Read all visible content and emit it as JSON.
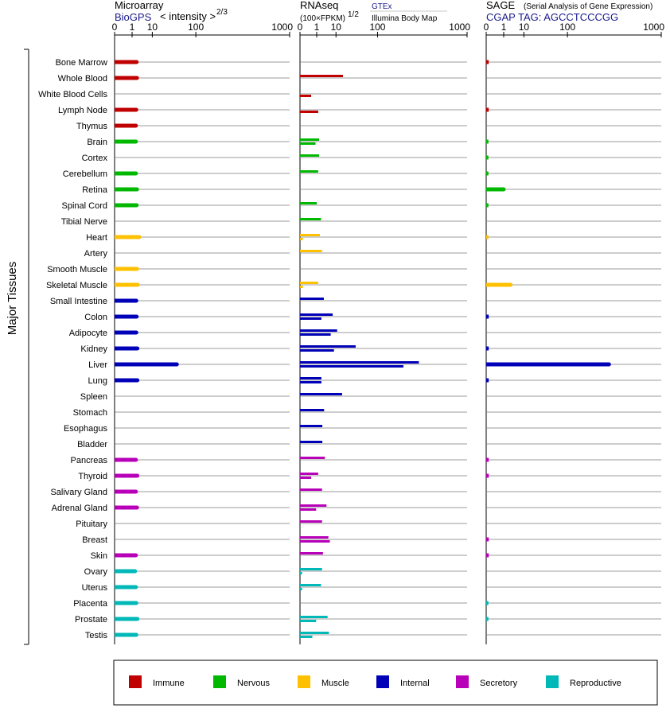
{
  "colors": {
    "immune": "#c00000",
    "nervous": "#00b800",
    "muscle": "#ffc000",
    "internal": "#0000b8",
    "secretory": "#b800b8",
    "reproductive": "#00b8b8"
  },
  "header": {
    "microarray_title": "Microarray",
    "microarray_source": "BioGPS",
    "microarray_scale": "< intensity >",
    "microarray_exponent": "2/3",
    "rnaseq_title": "RNAseq",
    "rnaseq_unit": "(100×FPKM)",
    "rnaseq_exponent": "1/2",
    "rnaseq_source_gtex": "GTEx",
    "rnaseq_source_illumina": "Illumina Body Map",
    "sage_title": "SAGE",
    "sage_subtitle": "(Serial Analysis of Gene Expression)",
    "sage_tag": "CGAP TAG: AGCCTCCCGG"
  },
  "group_label": "Major Tissues",
  "chart_data": {
    "type": "bar",
    "tick_labels": [
      "0",
      "1",
      "10",
      "100",
      "1000"
    ],
    "tick_values": [
      0,
      1,
      10,
      100,
      1000
    ],
    "x_range": [
      0,
      1000
    ],
    "x_scale": "power (axis shows intensity ticks 0, 1, 10, 100, 1000)",
    "grid": true,
    "legend_position": "bottom",
    "categories": [
      "Immune",
      "Nervous",
      "Muscle",
      "Internal",
      "Secretory",
      "Reproductive"
    ],
    "tissues": [
      {
        "name": "Bone Marrow",
        "group": "immune",
        "microarray": 2.0,
        "gtex": null,
        "illumina": null,
        "sage": 0.003
      },
      {
        "name": "Whole Blood",
        "group": "immune",
        "microarray": 2.1,
        "gtex": 17.0,
        "illumina": null,
        "sage": null
      },
      {
        "name": "White Blood Cells",
        "group": "immune",
        "microarray": null,
        "gtex": null,
        "illumina": 0.3,
        "sage": null
      },
      {
        "name": "Lymph Node",
        "group": "immune",
        "microarray": 1.9,
        "gtex": null,
        "illumina": 1.3,
        "sage": 0.003
      },
      {
        "name": "Thymus",
        "group": "immune",
        "microarray": 1.8,
        "gtex": null,
        "illumina": null,
        "sage": null
      },
      {
        "name": "Brain",
        "group": "nervous",
        "microarray": 1.8,
        "gtex": 1.5,
        "illumina": 0.8,
        "sage": 0.002
      },
      {
        "name": "Cortex",
        "group": "nervous",
        "microarray": null,
        "gtex": 1.5,
        "illumina": null,
        "sage": 0.002
      },
      {
        "name": "Cerebellum",
        "group": "nervous",
        "microarray": 1.8,
        "gtex": 1.3,
        "illumina": null,
        "sage": 0.002
      },
      {
        "name": "Retina",
        "group": "nervous",
        "microarray": 2.1,
        "gtex": null,
        "illumina": null,
        "sage": 1.0
      },
      {
        "name": "Spinal Cord",
        "group": "nervous",
        "microarray": 2.0,
        "gtex": 1.0,
        "illumina": null,
        "sage": 0.002
      },
      {
        "name": "Tibial Nerve",
        "group": "nervous",
        "microarray": null,
        "gtex": 2.0,
        "illumina": null,
        "sage": null
      },
      {
        "name": "Heart",
        "group": "muscle",
        "microarray": 2.8,
        "gtex": 1.7,
        "illumina": 0.005,
        "sage": 0.002
      },
      {
        "name": "Artery",
        "group": "muscle",
        "microarray": null,
        "gtex": 2.3,
        "illumina": null,
        "sage": null
      },
      {
        "name": "Smooth Muscle",
        "group": "muscle",
        "microarray": 2.1,
        "gtex": null,
        "illumina": null,
        "sage": null
      },
      {
        "name": "Skeletal Muscle",
        "group": "muscle",
        "microarray": 2.3,
        "gtex": 1.3,
        "illumina": 0.005,
        "sage": 2.7
      },
      {
        "name": "Small Intestine",
        "group": "internal",
        "microarray": 1.9,
        "gtex": 2.9,
        "illumina": null,
        "sage": null
      },
      {
        "name": "Colon",
        "group": "internal",
        "microarray": 2.0,
        "gtex": 7.5,
        "illumina": 2.1,
        "sage": 0.003
      },
      {
        "name": "Adipocyte",
        "group": "internal",
        "microarray": 1.9,
        "gtex": 11.0,
        "illumina": 6.2,
        "sage": null
      },
      {
        "name": "Kidney",
        "group": "internal",
        "microarray": 2.2,
        "gtex": 37.0,
        "illumina": 8.4,
        "sage": 0.003
      },
      {
        "name": "Liver",
        "group": "internal",
        "microarray": 45.0,
        "gtex": 360.0,
        "illumina": 237.0,
        "sage": 345.0
      },
      {
        "name": "Lung",
        "group": "internal",
        "microarray": 2.2,
        "gtex": 2.1,
        "illumina": 2.1,
        "sage": 0.003
      },
      {
        "name": "Spleen",
        "group": "internal",
        "microarray": null,
        "gtex": 16.0,
        "illumina": null,
        "sage": null
      },
      {
        "name": "Stomach",
        "group": "internal",
        "microarray": null,
        "gtex": 3.0,
        "illumina": null,
        "sage": null
      },
      {
        "name": "Esophagus",
        "group": "internal",
        "microarray": null,
        "gtex": 2.4,
        "illumina": null,
        "sage": null
      },
      {
        "name": "Bladder",
        "group": "internal",
        "microarray": null,
        "gtex": 2.4,
        "illumina": null,
        "sage": null
      },
      {
        "name": "Pancreas",
        "group": "secretory",
        "microarray": 1.8,
        "gtex": 3.3,
        "illumina": null,
        "sage": 0.003
      },
      {
        "name": "Thyroid",
        "group": "secretory",
        "microarray": 2.2,
        "gtex": 1.3,
        "illumina": 0.3,
        "sage": 0.003
      },
      {
        "name": "Salivary Gland",
        "group": "secretory",
        "microarray": 1.8,
        "gtex": 2.3,
        "illumina": null,
        "sage": null
      },
      {
        "name": "Adrenal Gland",
        "group": "secretory",
        "microarray": 2.1,
        "gtex": 4.0,
        "illumina": 0.9,
        "sage": null
      },
      {
        "name": "Pituitary",
        "group": "secretory",
        "microarray": null,
        "gtex": 2.3,
        "illumina": null,
        "sage": null
      },
      {
        "name": "Breast",
        "group": "secretory",
        "microarray": null,
        "gtex": 4.9,
        "illumina": 5.7,
        "sage": 0.003
      },
      {
        "name": "Skin",
        "group": "secretory",
        "microarray": 1.8,
        "gtex": 2.6,
        "illumina": null,
        "sage": 0.003
      },
      {
        "name": "Ovary",
        "group": "reproductive",
        "microarray": 1.6,
        "gtex": 2.3,
        "illumina": 0.002,
        "sage": null
      },
      {
        "name": "Uterus",
        "group": "reproductive",
        "microarray": 1.8,
        "gtex": 2.0,
        "illumina": 0.002,
        "sage": null
      },
      {
        "name": "Placenta",
        "group": "reproductive",
        "microarray": 1.9,
        "gtex": null,
        "illumina": null,
        "sage": 0.002
      },
      {
        "name": "Prostate",
        "group": "reproductive",
        "microarray": 2.2,
        "gtex": 4.5,
        "illumina": 0.9,
        "sage": 0.002
      },
      {
        "name": "Testis",
        "group": "reproductive",
        "microarray": 1.9,
        "gtex": 5.2,
        "illumina": 0.4,
        "sage": null
      }
    ],
    "legend": [
      {
        "key": "immune",
        "label": "Immune"
      },
      {
        "key": "nervous",
        "label": "Nervous"
      },
      {
        "key": "muscle",
        "label": "Muscle"
      },
      {
        "key": "internal",
        "label": "Internal"
      },
      {
        "key": "secretory",
        "label": "Secretory"
      },
      {
        "key": "reproductive",
        "label": "Reproductive"
      }
    ]
  }
}
